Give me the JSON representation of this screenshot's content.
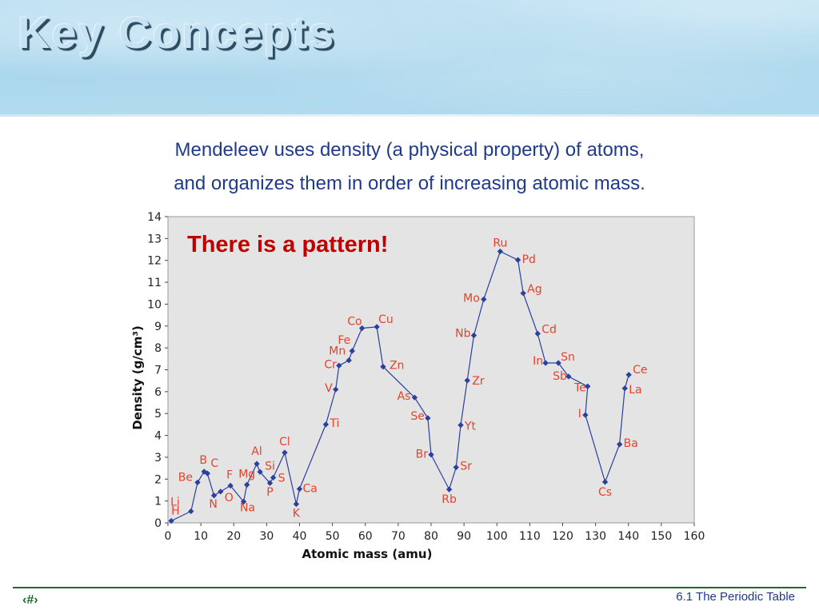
{
  "slide": {
    "title": "Key Concepts",
    "subtitle_line1": "Mendeleev uses density (a physical property) of atoms,",
    "subtitle_line2": "and organizes them in order of increasing atomic mass.",
    "callout": "There is a pattern!",
    "footer_left": "‹#›",
    "footer_right": "6.1  The Periodic Table"
  },
  "chart_data": {
    "type": "line",
    "xlabel": "Atomic mass (amu)",
    "ylabel": "Density (g/cm³)",
    "xlim": [
      0,
      160
    ],
    "ylim": [
      0,
      14
    ],
    "xticks": [
      "0",
      "10",
      "20",
      "30",
      "40",
      "50",
      "60",
      "70",
      "80",
      "90",
      "100",
      "110",
      "120",
      "130",
      "140",
      "150",
      "160"
    ],
    "yticks": [
      "0",
      "1",
      "2",
      "3",
      "4",
      "5",
      "6",
      "7",
      "8",
      "9",
      "10",
      "11",
      "12",
      "13",
      "14"
    ],
    "grid": false,
    "colors": {
      "line": "#2b3f9e",
      "label": "#e8412c",
      "plot_bg": "#e4e4e4"
    },
    "points": [
      {
        "label": "H",
        "x": 1,
        "y": 0.09
      },
      {
        "label": "Li",
        "x": 7,
        "y": 0.53
      },
      {
        "label": "Be",
        "x": 9,
        "y": 1.85
      },
      {
        "label": "B",
        "x": 11,
        "y": 2.34
      },
      {
        "label": "C",
        "x": 12,
        "y": 2.26
      },
      {
        "label": "N",
        "x": 14,
        "y": 1.25
      },
      {
        "label": "O",
        "x": 16,
        "y": 1.43
      },
      {
        "label": "F",
        "x": 19,
        "y": 1.7
      },
      {
        "label": "Na",
        "x": 23,
        "y": 0.97
      },
      {
        "label": "Mg",
        "x": 24,
        "y": 1.74
      },
      {
        "label": "Al",
        "x": 27,
        "y": 2.7
      },
      {
        "label": "Si",
        "x": 28,
        "y": 2.33
      },
      {
        "label": "P",
        "x": 31,
        "y": 1.82
      },
      {
        "label": "S",
        "x": 32,
        "y": 2.07
      },
      {
        "label": "Cl",
        "x": 35.5,
        "y": 3.21
      },
      {
        "label": "K",
        "x": 39,
        "y": 0.86
      },
      {
        "label": "Ca",
        "x": 40,
        "y": 1.55
      },
      {
        "label": "Ti",
        "x": 48,
        "y": 4.5
      },
      {
        "label": "V",
        "x": 51,
        "y": 6.1
      },
      {
        "label": "Cr",
        "x": 52,
        "y": 7.19
      },
      {
        "label": "Mn",
        "x": 55,
        "y": 7.43
      },
      {
        "label": "Fe",
        "x": 56,
        "y": 7.86
      },
      {
        "label": "Co",
        "x": 59,
        "y": 8.9
      },
      {
        "label": "Cu",
        "x": 63.5,
        "y": 8.96
      },
      {
        "label": "Zn",
        "x": 65.4,
        "y": 7.14
      },
      {
        "label": "As",
        "x": 75,
        "y": 5.73
      },
      {
        "label": "Se",
        "x": 79,
        "y": 4.79
      },
      {
        "label": "Br",
        "x": 80,
        "y": 3.12
      },
      {
        "label": "Rb",
        "x": 85.5,
        "y": 1.53
      },
      {
        "label": "Sr",
        "x": 87.6,
        "y": 2.54
      },
      {
        "label": "Yt",
        "x": 89,
        "y": 4.47
      },
      {
        "label": "Zr",
        "x": 91,
        "y": 6.51
      },
      {
        "label": "Nb",
        "x": 93,
        "y": 8.57
      },
      {
        "label": "Mo",
        "x": 96,
        "y": 10.22
      },
      {
        "label": "Ru",
        "x": 101,
        "y": 12.41
      },
      {
        "label": "Pd",
        "x": 106.4,
        "y": 12.02
      },
      {
        "label": "Ag",
        "x": 108,
        "y": 10.5
      },
      {
        "label": "Cd",
        "x": 112.4,
        "y": 8.65
      },
      {
        "label": "In",
        "x": 114.8,
        "y": 7.31
      },
      {
        "label": "Sn",
        "x": 118.7,
        "y": 7.31
      },
      {
        "label": "Sb",
        "x": 121.8,
        "y": 6.69
      },
      {
        "label": "Te",
        "x": 127.6,
        "y": 6.24
      },
      {
        "label": "I",
        "x": 126.9,
        "y": 4.93
      },
      {
        "label": "Cs",
        "x": 132.9,
        "y": 1.87
      },
      {
        "label": "Ba",
        "x": 137.3,
        "y": 3.59
      },
      {
        "label": "La",
        "x": 138.9,
        "y": 6.15
      },
      {
        "label": "Ce",
        "x": 140.1,
        "y": 6.77
      }
    ]
  }
}
